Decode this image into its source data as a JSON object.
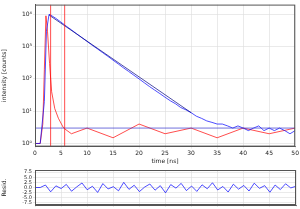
{
  "chart_data": [
    {
      "type": "line",
      "y_label": "intensity [counts]",
      "x_label": "time [ns]",
      "log": "y",
      "grid": true,
      "xlim": [
        0,
        50
      ],
      "xticks": [
        0,
        5,
        10,
        15,
        20,
        25,
        30,
        35,
        40,
        45,
        50
      ],
      "ylim": [
        0.8,
        20000
      ],
      "yticks": [
        {
          "value": 1,
          "label": "10⁰"
        },
        {
          "value": 10,
          "label": "10¹"
        },
        {
          "value": 100,
          "label": "10²"
        },
        {
          "value": 1000,
          "label": "10³"
        },
        {
          "value": 10000,
          "label": "10⁴"
        }
      ],
      "series": [
        {
          "color": "#ff0000",
          "line_style": "solid",
          "marker": "none",
          "x": [
            0,
            1,
            1.5,
            1.8,
            2.1,
            2.4,
            2.8,
            3.2,
            3.8,
            4.5,
            5.5,
            7,
            10,
            15,
            20,
            25,
            30,
            35,
            40,
            45,
            50
          ],
          "values": [
            1,
            1,
            4,
            200,
            9000,
            3000,
            300,
            40,
            12,
            6,
            3,
            2,
            3,
            1.5,
            4,
            2,
            3,
            1.5,
            3,
            2,
            3
          ]
        },
        {
          "color": "#0000ff",
          "line_style": "solid",
          "marker": "none",
          "x": [
            0,
            1,
            1.8,
            2.2,
            2.7,
            3,
            4,
            5,
            6,
            7,
            8,
            9,
            10,
            11,
            12,
            13,
            14,
            15,
            16,
            17,
            18,
            19,
            20,
            21,
            22,
            23,
            24,
            25,
            26,
            27,
            28,
            29,
            30,
            31,
            32,
            33,
            34,
            35,
            36,
            37,
            38,
            39,
            40,
            41,
            42,
            43,
            44,
            45,
            46,
            47,
            48,
            49,
            50
          ],
          "values": [
            1,
            1,
            20,
            3000,
            10000,
            9500,
            7500,
            5700,
            4300,
            3300,
            2500,
            1900,
            1450,
            1100,
            850,
            650,
            500,
            380,
            290,
            220,
            170,
            130,
            100,
            76,
            58,
            45,
            35,
            27,
            21,
            17,
            13,
            11,
            9,
            7,
            6,
            5,
            4.5,
            4,
            4,
            3.5,
            3,
            3.5,
            3,
            2.5,
            3,
            3.5,
            2.5,
            3,
            2.5,
            3,
            2.5,
            2,
            2.5
          ]
        },
        {
          "color": "#000080",
          "line_style": "solid",
          "marker": "none",
          "x": [
            2.7,
            30
          ],
          "values": [
            9500,
            9
          ]
        },
        {
          "color": "#3333cc",
          "line_style": "solid",
          "marker": "none",
          "x": [
            0,
            50
          ],
          "values": [
            3,
            3
          ]
        },
        {
          "color": "#ff0000",
          "line_style": "solid",
          "marker": "none",
          "x": [
            3,
            3
          ],
          "values": [
            0.8,
            20000
          ]
        },
        {
          "color": "#ff0000",
          "line_style": "solid",
          "marker": "none",
          "x": [
            5.7,
            5.7
          ],
          "values": [
            0.8,
            20000
          ]
        }
      ]
    },
    {
      "type": "line",
      "y_label": "Resid.",
      "grid": true,
      "tick_labels": "y",
      "xlim": [
        0,
        50
      ],
      "xticks": [
        0,
        5,
        10,
        15,
        20,
        25,
        30,
        35,
        40,
        45,
        50
      ],
      "ylim": [
        -8.5,
        8.5
      ],
      "yticks": [
        {
          "value": -7.5,
          "label": "-7.5"
        },
        {
          "value": -5,
          "label": "-5.0"
        },
        {
          "value": -2.5,
          "label": "-2.5"
        },
        {
          "value": 0,
          "label": "0.0"
        },
        {
          "value": 2.5,
          "label": "2.5"
        },
        {
          "value": 5,
          "label": "5.0"
        },
        {
          "value": 7.5,
          "label": "7.5"
        }
      ],
      "series": [
        {
          "color": "#0000ff",
          "line_style": "solid",
          "marker": "none",
          "x": [
            0,
            1,
            2,
            3,
            4,
            5,
            6,
            7,
            8,
            9,
            10,
            11,
            12,
            13,
            14,
            15,
            16,
            17,
            18,
            19,
            20,
            21,
            22,
            23,
            24,
            25,
            26,
            27,
            28,
            29,
            30,
            31,
            32,
            33,
            34,
            35,
            36,
            37,
            38,
            39,
            40,
            41,
            42,
            43,
            44,
            45,
            46,
            47,
            48,
            49,
            50
          ],
          "values": [
            0,
            0,
            1.2,
            -2.1,
            0.8,
            -0.5,
            1.5,
            -1.8,
            0.3,
            2.2,
            -1.1,
            0.6,
            -2.4,
            1.9,
            -0.7,
            0.4,
            -1.6,
            2.5,
            -0.9,
            1.1,
            -2.0,
            0.2,
            1.7,
            -1.3,
            0.9,
            -2.6,
            1.4,
            -0.3,
            2.0,
            -1.5,
            0.7,
            -1.9,
            1.3,
            -0.6,
            2.3,
            -1.2,
            0.5,
            -2.2,
            1.6,
            -0.8,
            1.0,
            -1.7,
            2.1,
            -0.4,
            0.9,
            -2.3,
            1.2,
            -1.0,
            1.8,
            -0.2,
            0.6
          ]
        }
      ]
    }
  ]
}
